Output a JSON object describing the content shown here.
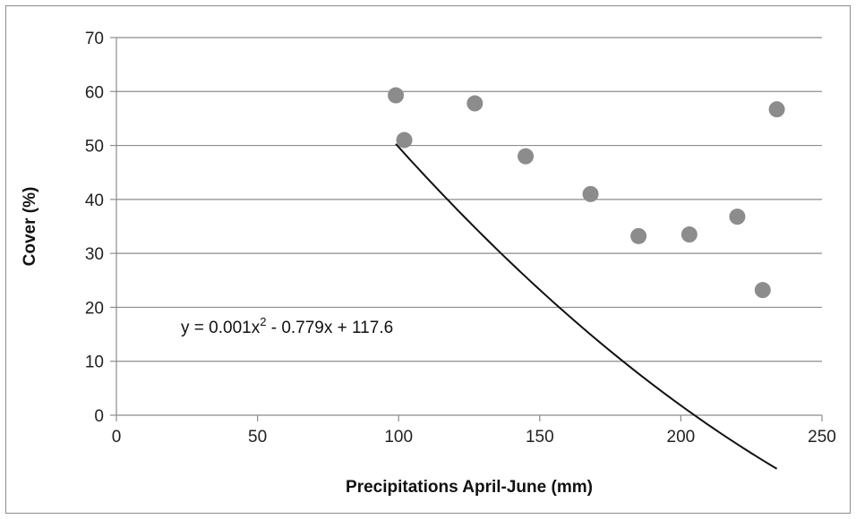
{
  "chart_data": {
    "type": "scatter",
    "title": "",
    "xlabel": "Precipitations April-June (mm)",
    "ylabel": "Cover (%)",
    "xlim": [
      0,
      250
    ],
    "ylim": [
      0,
      70
    ],
    "xticks": [
      0,
      50,
      100,
      150,
      200,
      250
    ],
    "yticks": [
      0,
      10,
      20,
      30,
      40,
      50,
      60,
      70
    ],
    "grid": "horizontal",
    "legend": "none",
    "point_color": "#8c8c8c",
    "trend_color": "#111111",
    "points": [
      {
        "x": 99,
        "y": 59.3
      },
      {
        "x": 102,
        "y": 51.0
      },
      {
        "x": 127,
        "y": 57.8
      },
      {
        "x": 145,
        "y": 48.0
      },
      {
        "x": 168,
        "y": 41.0
      },
      {
        "x": 185,
        "y": 33.2
      },
      {
        "x": 203,
        "y": 33.5
      },
      {
        "x": 220,
        "y": 36.8
      },
      {
        "x": 229,
        "y": 23.2
      },
      {
        "x": 234,
        "y": 56.7
      }
    ],
    "trendline": {
      "type": "polynomial-2",
      "x_range": [
        99,
        234
      ],
      "coefficients": {
        "a": 0.001,
        "b": -0.779,
        "c": 117.6
      }
    },
    "annotation": {
      "eq_main": "y = 0.001x",
      "eq_sup": "2",
      "eq_rest": " - 0.779x + 117.6"
    }
  }
}
